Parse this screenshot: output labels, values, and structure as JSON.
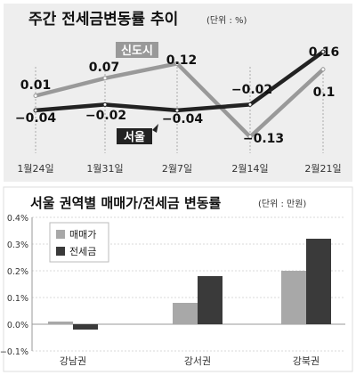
{
  "chart_data": [
    {
      "type": "line",
      "title": "주간 전세금변동률 추이",
      "unit": "(단위 : %)",
      "categories": [
        "1월24일",
        "1월31일",
        "2월7일",
        "2월14일",
        "2월21일"
      ],
      "series": [
        {
          "name": "신도시",
          "values": [
            0.01,
            0.07,
            0.12,
            -0.13,
            0.1
          ],
          "value_labels": [
            "0.01",
            "0.07",
            "0.12",
            "−0.13",
            "0.1"
          ],
          "color": "#999999",
          "label_color": "#999999"
        },
        {
          "name": "서울",
          "values": [
            -0.04,
            -0.02,
            -0.04,
            -0.02,
            0.16
          ],
          "value_labels": [
            "−0.04",
            "−0.02",
            "−0.04",
            "−0.02",
            "0.16"
          ],
          "color": "#222222",
          "label_color": "#222222"
        }
      ],
      "ylim": [
        -0.18,
        0.2
      ]
    },
    {
      "type": "bar",
      "title": "서울 권역별 매매가/전세금 변동률",
      "unit": "(단위 : 만원)",
      "categories": [
        "강남권",
        "강서권",
        "강북권"
      ],
      "series": [
        {
          "name": "매매가",
          "values": [
            0.01,
            0.08,
            0.2
          ],
          "color": "#a8a8a8"
        },
        {
          "name": "전세금",
          "values": [
            -0.02,
            0.18,
            0.32
          ],
          "color": "#3a3a3a"
        }
      ],
      "ylim": [
        -0.1,
        0.4
      ],
      "yticks": [
        0.4,
        0.3,
        0.2,
        0.1,
        0.0,
        -0.1
      ],
      "ytick_labels": [
        "0.4%",
        "0.3%",
        "0.2%",
        "0.1%",
        "0.0%",
        "−0.1%"
      ],
      "legend_position": "top-left"
    }
  ]
}
